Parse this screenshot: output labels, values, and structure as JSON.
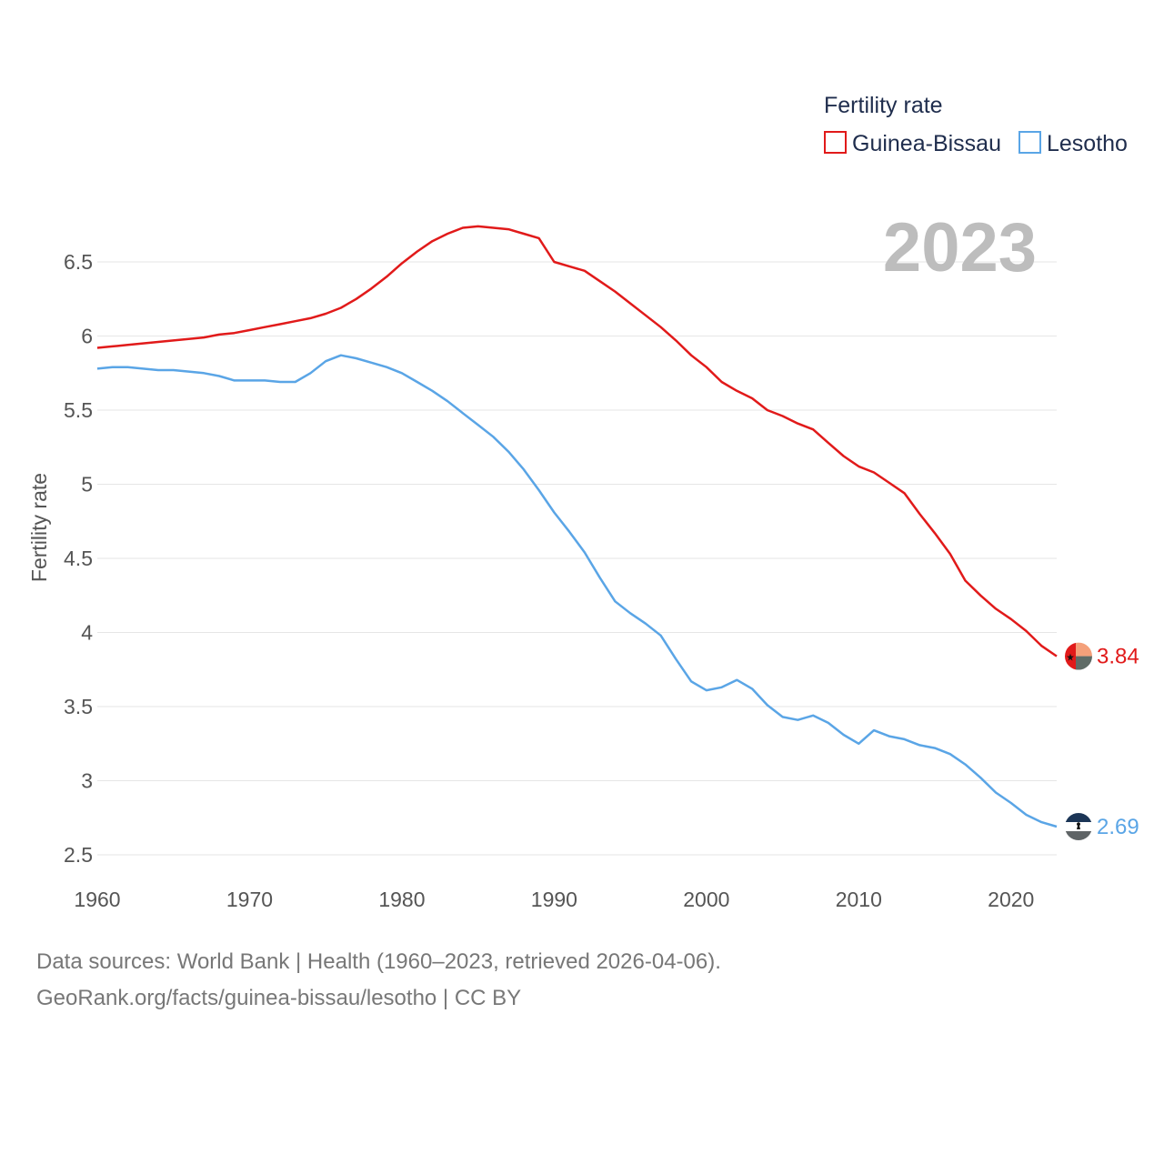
{
  "chart_data": {
    "type": "line",
    "ylabel": "Fertility rate",
    "xlabel": "",
    "ylim": [
      2.5,
      6.75
    ],
    "xlim": [
      1960,
      2023
    ],
    "grid": true,
    "yticks": [
      2.5,
      3,
      3.5,
      4,
      4.5,
      5,
      5.5,
      6,
      6.5
    ],
    "ytick_labels": [
      "2.5",
      "3",
      "3.5",
      "4",
      "4.5",
      "5",
      "5.5",
      "6",
      "6.5"
    ],
    "xticks": [
      1960,
      1970,
      1980,
      1990,
      2000,
      2010,
      2020
    ],
    "xtick_labels": [
      "1960",
      "1970",
      "1980",
      "1990",
      "2000",
      "2010",
      "2020"
    ],
    "legend": {
      "title": "Fertility rate",
      "position": "top-right"
    },
    "year_label": "2023",
    "x": [
      1960,
      1961,
      1962,
      1963,
      1964,
      1965,
      1966,
      1967,
      1968,
      1969,
      1970,
      1971,
      1972,
      1973,
      1974,
      1975,
      1976,
      1977,
      1978,
      1979,
      1980,
      1981,
      1982,
      1983,
      1984,
      1985,
      1986,
      1987,
      1988,
      1989,
      1990,
      1991,
      1992,
      1993,
      1994,
      1995,
      1996,
      1997,
      1998,
      1999,
      2000,
      2001,
      2002,
      2003,
      2004,
      2005,
      2006,
      2007,
      2008,
      2009,
      2010,
      2011,
      2012,
      2013,
      2014,
      2015,
      2016,
      2017,
      2018,
      2019,
      2020,
      2021,
      2022,
      2023
    ],
    "series": [
      {
        "name": "Guinea-Bissau",
        "color": "#e11a1a",
        "end_label": "3.84",
        "values": [
          5.92,
          5.93,
          5.94,
          5.95,
          5.96,
          5.97,
          5.98,
          5.99,
          6.01,
          6.02,
          6.04,
          6.06,
          6.08,
          6.1,
          6.12,
          6.15,
          6.19,
          6.25,
          6.32,
          6.4,
          6.49,
          6.57,
          6.64,
          6.69,
          6.73,
          6.74,
          6.73,
          6.72,
          6.69,
          6.66,
          6.5,
          6.47,
          6.44,
          6.37,
          6.3,
          6.22,
          6.14,
          6.06,
          5.97,
          5.87,
          5.79,
          5.69,
          5.63,
          5.58,
          5.5,
          5.46,
          5.41,
          5.37,
          5.28,
          5.19,
          5.12,
          5.08,
          5.01,
          4.94,
          4.8,
          4.67,
          4.53,
          4.35,
          4.25,
          4.16,
          4.09,
          4.01,
          3.91,
          3.84
        ]
      },
      {
        "name": "Lesotho",
        "color": "#5aa5e6",
        "end_label": "2.69",
        "values": [
          5.78,
          5.79,
          5.79,
          5.78,
          5.77,
          5.77,
          5.76,
          5.75,
          5.73,
          5.7,
          5.7,
          5.7,
          5.69,
          5.69,
          5.75,
          5.83,
          5.87,
          5.85,
          5.82,
          5.79,
          5.75,
          5.69,
          5.63,
          5.56,
          5.48,
          5.4,
          5.32,
          5.22,
          5.1,
          4.96,
          4.81,
          4.68,
          4.54,
          4.37,
          4.21,
          4.13,
          4.06,
          3.98,
          3.82,
          3.67,
          3.61,
          3.63,
          3.68,
          3.62,
          3.51,
          3.43,
          3.41,
          3.44,
          3.39,
          3.31,
          3.25,
          3.34,
          3.3,
          3.28,
          3.24,
          3.22,
          3.18,
          3.11,
          3.02,
          2.92,
          2.85,
          2.77,
          2.72,
          2.69
        ]
      }
    ]
  },
  "footer": {
    "line1": "Data sources: World Bank | Health (1960–2023, retrieved 2026-04-06).",
    "line2": "GeoRank.org/facts/guinea-bissau/lesotho | CC BY"
  }
}
